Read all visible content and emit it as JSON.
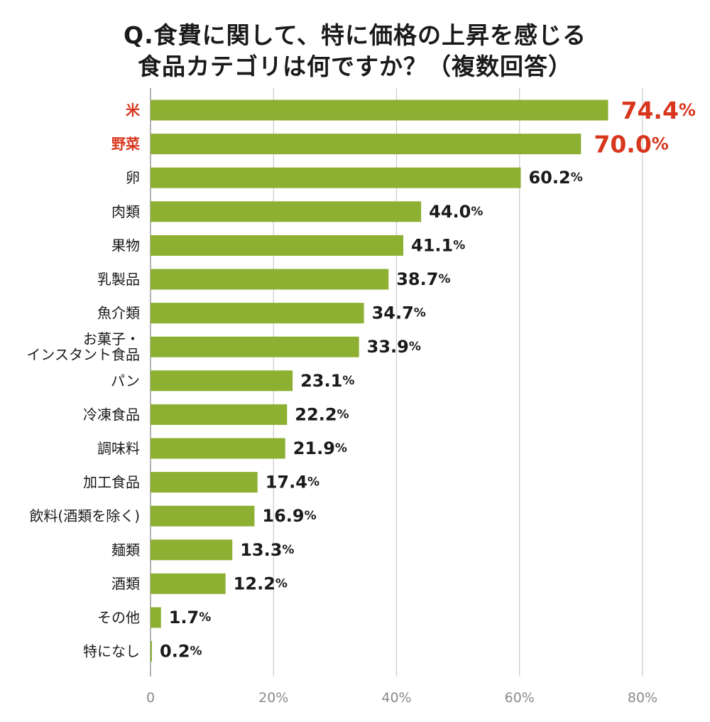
{
  "title": {
    "line1": "Q.食費に関して、特に価格の上昇を感じる",
    "line2": "食品カテゴリは何ですか？（複数回答）"
  },
  "chart_data": {
    "type": "bar",
    "orientation": "horizontal",
    "categories": [
      [
        "米"
      ],
      [
        "野菜"
      ],
      [
        "卵"
      ],
      [
        "肉類"
      ],
      [
        "果物"
      ],
      [
        "乳製品"
      ],
      [
        "魚介類"
      ],
      [
        "お菓子・",
        "インスタント食品"
      ],
      [
        "パン"
      ],
      [
        "冷凍食品"
      ],
      [
        "調味料"
      ],
      [
        "加工食品"
      ],
      [
        "飲料(酒類を除く)"
      ],
      [
        "麺類"
      ],
      [
        "酒類"
      ],
      [
        "その他"
      ],
      [
        "特になし"
      ]
    ],
    "values": [
      74.4,
      70.0,
      60.2,
      44.0,
      41.1,
      38.7,
      34.7,
      33.9,
      23.1,
      22.2,
      21.9,
      17.4,
      16.9,
      13.3,
      12.2,
      1.7,
      0.2
    ],
    "value_labels": [
      "74.4",
      "70.0",
      "60.2",
      "44.0",
      "41.1",
      "38.7",
      "34.7",
      "33.9",
      "23.1",
      "22.2",
      "21.9",
      "17.4",
      "16.9",
      "13.3",
      "12.2",
      "1.7",
      "0.2"
    ],
    "value_unit": "%",
    "highlighted_indices": [
      0,
      1
    ],
    "xlim": [
      0,
      80
    ],
    "x_ticks": [
      0,
      20,
      40,
      60,
      80
    ],
    "x_tick_labels": [
      "0",
      "20%",
      "40%",
      "60%",
      "80%"
    ],
    "grid": true,
    "colors": {
      "bar": "#8db033",
      "highlight_text": "#d8361d",
      "text": "#1a1a1a",
      "grid": "#c8c8c8",
      "tick_text": "#8a8a8a"
    }
  }
}
